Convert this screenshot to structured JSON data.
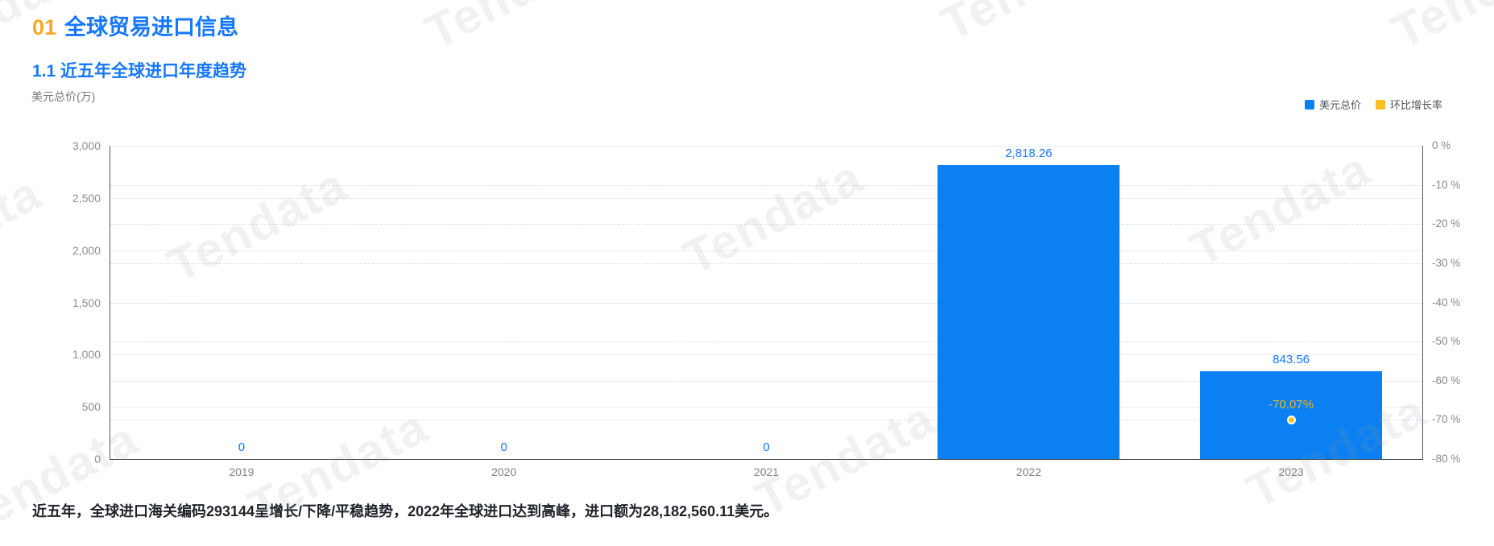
{
  "page": {
    "section_number": "01",
    "section_title": "全球贸易进口信息",
    "subsection_title": "1.1 近五年全球进口年度趋势",
    "caption": "近五年，全球进口海关编码293144呈增长/下降/平稳趋势，2022年全球进口达到高峰，进口额为28,182,560.11美元。"
  },
  "watermark": {
    "text": "Tendata"
  },
  "colors": {
    "accent_orange": "#F9A825",
    "accent_blue": "#1677FF",
    "bar_blue": "#0A80F2",
    "accent_yellow": "#FBBE23"
  },
  "chart_data": {
    "type": "bar",
    "title": "",
    "xlabel": "",
    "ylabel": "美元总价(万)",
    "categories": [
      "2019",
      "2020",
      "2021",
      "2022",
      "2023"
    ],
    "series": [
      {
        "name": "美元总价",
        "type": "bar",
        "axis": "left",
        "color": "#0A80F2",
        "values": [
          0,
          0,
          0,
          2818.26,
          843.56
        ],
        "labels": [
          "0",
          "0",
          "0",
          "2,818.26",
          "843.56"
        ]
      },
      {
        "name": "环比增长率",
        "type": "scatter",
        "axis": "right",
        "color": "#FBBE23",
        "points": [
          {
            "category": "2023",
            "value": -70.07,
            "label": "-70.07%"
          }
        ]
      }
    ],
    "y_left": {
      "label": "美元总价(万)",
      "range": [
        0,
        3000
      ],
      "ticks": [
        "3,000",
        "2,500",
        "2,000",
        "1,500",
        "1,000",
        "500",
        "0"
      ]
    },
    "y_right": {
      "label": "环比增长率",
      "range": [
        0,
        -80
      ],
      "ticks": [
        "0 %",
        "-10 %",
        "-20 %",
        "-30 %",
        "-40 %",
        "-50 %",
        "-60 %",
        "-70 %",
        "-80 %"
      ]
    },
    "legend_position": "top-right",
    "grid": true
  }
}
